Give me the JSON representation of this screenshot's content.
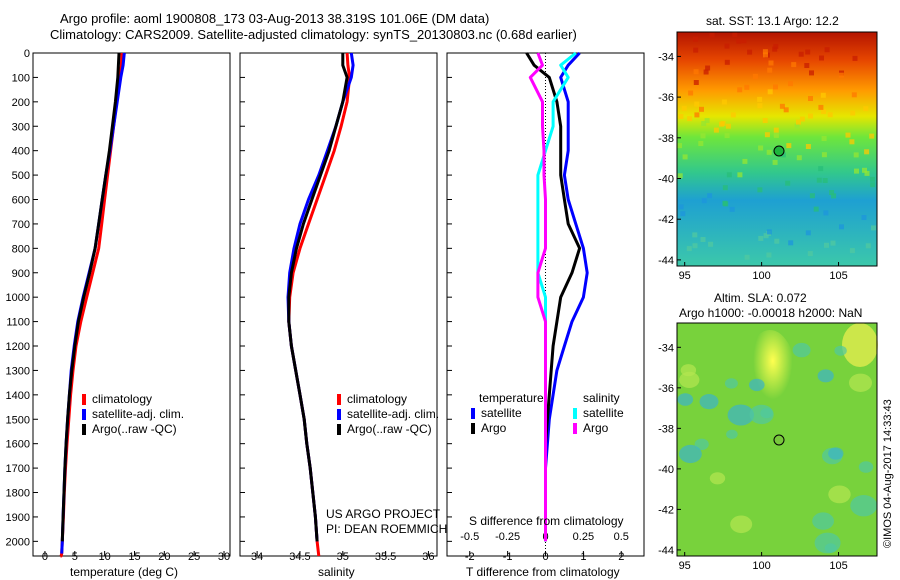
{
  "header": {
    "line1": "Argo profile: aoml 1900808_173 03-Aug-2013 38.319S 101.06E (DM data)",
    "line2": "Climatology: CARS2009. Satellite-adjusted climatology: synTS_20130803.nc (0.68d earlier)"
  },
  "colors": {
    "climatology": "#ff0000",
    "satellite": "#0000ff",
    "argo": "#000000",
    "argo_salinity": "#ff00ff",
    "satellite_salinity": "#00ffff"
  },
  "depth_ticks": [
    "0",
    "100",
    "200",
    "300",
    "400",
    "500",
    "600",
    "700",
    "800",
    "900",
    "1000",
    "1100",
    "1200",
    "1300",
    "1400",
    "1500",
    "1600",
    "1700",
    "1800",
    "1900",
    "2000"
  ],
  "legend_profile": [
    {
      "label": "climatology",
      "color": "#ff0000"
    },
    {
      "label": "satellite-adj. clim.",
      "color": "#0000ff"
    },
    {
      "label": "Argo(..raw -QC)",
      "color": "#000000"
    }
  ],
  "legend_diff": {
    "temp_header": "temperature",
    "sal_header": "salinity",
    "temp": [
      {
        "label": "satellite",
        "color": "#0000ff"
      },
      {
        "label": "Argo",
        "color": "#000000"
      }
    ],
    "sal": [
      {
        "label": "satellite",
        "color": "#00ffff"
      },
      {
        "label": "Argo",
        "color": "#ff00ff"
      }
    ]
  },
  "credit": {
    "line1": "US ARGO PROJECT",
    "line2": "PI: DEAN ROEMMICH"
  },
  "map_sst": {
    "title": "sat. SST: 13.1  Argo: 12.2",
    "lat_ticks": [
      "-34",
      "-36",
      "-38",
      "-40",
      "-42",
      "-44"
    ],
    "lon_ticks": [
      "95",
      "100",
      "105"
    ]
  },
  "map_sla": {
    "title1": "Altim. SLA: 0.072",
    "title2": "Argo h1000: -0.00018 h2000: NaN",
    "lat_ticks": [
      "-34",
      "-36",
      "-38",
      "-40",
      "-42",
      "-44"
    ],
    "lon_ticks": [
      "95",
      "100",
      "105"
    ]
  },
  "watermark": "©IMOS 04-Aug-2017 14:33:43",
  "chart_data": [
    {
      "type": "line",
      "xlabel": "temperature (deg C)",
      "ylabel": "",
      "xlim": [
        -2,
        31
      ],
      "ylim": [
        2060,
        0
      ],
      "xticks": [
        0,
        5,
        10,
        15,
        20,
        25,
        30
      ],
      "series": [
        {
          "name": "climatology",
          "color": "#ff0000",
          "x": [
            12.9,
            12.8,
            12.5,
            12.0,
            11.5,
            11.0,
            10.5,
            10.0,
            9.5,
            9.0,
            8.0,
            7.0,
            6.0,
            5.2,
            4.7,
            4.3,
            4.0,
            3.7,
            3.45,
            3.25,
            3.1,
            2.9,
            2.8,
            2.7,
            2.6
          ],
          "y": [
            0,
            50,
            100,
            200,
            300,
            400,
            500,
            600,
            700,
            800,
            900,
            1000,
            1100,
            1200,
            1300,
            1400,
            1500,
            1600,
            1700,
            1800,
            1900,
            2000,
            2050,
            2060,
            2060
          ]
        },
        {
          "name": "satellite-adj. clim.",
          "color": "#0000ff",
          "x": [
            13.3,
            13.1,
            12.7,
            12.1,
            11.5,
            10.9,
            10.2,
            9.6,
            9.0,
            8.4,
            7.4,
            6.4,
            5.5,
            4.9,
            4.4,
            4.1,
            3.8,
            3.55,
            3.35,
            3.2,
            3.05,
            2.9,
            2.8
          ],
          "y": [
            0,
            50,
            100,
            200,
            300,
            400,
            500,
            600,
            700,
            800,
            900,
            1000,
            1100,
            1200,
            1300,
            1400,
            1500,
            1600,
            1700,
            1800,
            1900,
            2000,
            2050
          ]
        },
        {
          "name": "Argo(..raw -QC)",
          "color": "#000000",
          "x": [
            12.4,
            12.3,
            12.2,
            11.8,
            11.3,
            10.8,
            10.2,
            9.6,
            9.0,
            8.4,
            7.5,
            6.5,
            5.6,
            5.0,
            4.5,
            4.1,
            3.8,
            3.55,
            3.35,
            3.2,
            3.05,
            2.9
          ],
          "y": [
            0,
            50,
            100,
            200,
            300,
            400,
            500,
            600,
            700,
            800,
            900,
            1000,
            1100,
            1200,
            1300,
            1400,
            1500,
            1600,
            1700,
            1800,
            1900,
            2000
          ]
        }
      ]
    },
    {
      "type": "line",
      "xlabel": "salinity",
      "ylabel": "",
      "xlim": [
        33.8,
        36.1
      ],
      "ylim": [
        2060,
        0
      ],
      "xticks": [
        34,
        34.5,
        35,
        35.5,
        36
      ],
      "series": [
        {
          "name": "climatology",
          "color": "#ff0000",
          "x": [
            35.05,
            35.06,
            35.08,
            35.05,
            34.98,
            34.9,
            34.8,
            34.7,
            34.6,
            34.5,
            34.42,
            34.38,
            34.37,
            34.4,
            34.45,
            34.5,
            34.55,
            34.58,
            34.62,
            34.65,
            34.68,
            34.7,
            34.72
          ],
          "y": [
            0,
            50,
            100,
            200,
            300,
            400,
            500,
            600,
            700,
            800,
            900,
            1000,
            1100,
            1200,
            1300,
            1400,
            1500,
            1600,
            1700,
            1800,
            1900,
            2000,
            2060
          ]
        },
        {
          "name": "satellite-adj. clim.",
          "color": "#0000ff",
          "x": [
            35.1,
            35.12,
            35.1,
            35.0,
            34.92,
            34.82,
            34.72,
            34.6,
            34.5,
            34.43,
            34.38,
            34.36,
            34.37,
            34.4,
            34.45,
            34.5,
            34.55,
            34.58,
            34.62,
            34.65,
            34.68,
            34.7
          ],
          "y": [
            0,
            50,
            100,
            200,
            300,
            400,
            500,
            600,
            700,
            800,
            900,
            1000,
            1100,
            1200,
            1300,
            1400,
            1500,
            1600,
            1700,
            1800,
            1900,
            2000
          ]
        },
        {
          "name": "Argo(..raw -QC)",
          "color": "#000000",
          "x": [
            35.0,
            35.0,
            35.05,
            35.0,
            34.92,
            34.84,
            34.74,
            34.64,
            34.54,
            34.46,
            34.4,
            34.37,
            34.37,
            34.4,
            34.45,
            34.5,
            34.55,
            34.58,
            34.62,
            34.65,
            34.68,
            34.7
          ],
          "y": [
            0,
            50,
            100,
            200,
            300,
            400,
            500,
            600,
            700,
            800,
            900,
            1000,
            1100,
            1200,
            1300,
            1400,
            1500,
            1600,
            1700,
            1800,
            1900,
            2000
          ]
        }
      ]
    },
    {
      "type": "line",
      "xlabel": "T difference from climatology",
      "secondary_xlabel": "S difference from climatology",
      "xlim": [
        -2.6,
        2.6
      ],
      "ylim": [
        2060,
        0
      ],
      "xticks": [
        -2,
        -1,
        0,
        1,
        2
      ],
      "xticklabels": [
        "-2",
        "-1",
        "0",
        "1",
        "2"
      ],
      "s_xticks": [
        -0.5,
        -0.25,
        0,
        0.25,
        0.5
      ],
      "s_xticklabels": [
        "-0.5",
        "-0.25",
        "0",
        "0.25",
        "0.5"
      ],
      "series": [
        {
          "name": "temperature satellite",
          "color": "#0000ff",
          "x": [
            0.9,
            0.6,
            0.4,
            0.6,
            0.6,
            0.6,
            0.5,
            0.6,
            0.8,
            1.0,
            1.1,
            1.0,
            0.7,
            0.5,
            0.3,
            0.2,
            0.1,
            0.05,
            0.0,
            0.0,
            0.0,
            0.0
          ],
          "y": [
            0,
            50,
            100,
            200,
            300,
            400,
            500,
            600,
            700,
            800,
            900,
            1000,
            1100,
            1200,
            1300,
            1400,
            1500,
            1600,
            1700,
            1800,
            1900,
            2000
          ]
        },
        {
          "name": "temperature Argo",
          "color": "#000000",
          "x": [
            -0.5,
            -0.3,
            0.1,
            0.3,
            0.4,
            0.4,
            0.4,
            0.5,
            0.6,
            0.9,
            0.7,
            0.4,
            0.3,
            0.2,
            0.15,
            0.1,
            0.05,
            0.0,
            0.0,
            0.0,
            0.0,
            0.0
          ],
          "y": [
            0,
            50,
            100,
            200,
            300,
            400,
            500,
            600,
            700,
            800,
            900,
            1000,
            1100,
            1200,
            1300,
            1400,
            1500,
            1600,
            1700,
            1800,
            1900,
            2000
          ]
        },
        {
          "name": "salinity satellite",
          "color": "#00ffff",
          "x": [
            0.2,
            0.1,
            0.15,
            0.05,
            0.05,
            0.0,
            -0.05,
            -0.05,
            -0.05,
            -0.05,
            -0.05,
            0.0,
            0.0,
            0.0,
            0.0,
            0.0,
            0.0,
            0.0,
            0.0,
            0.0,
            0.0,
            0.0
          ],
          "y": [
            0,
            50,
            100,
            200,
            300,
            400,
            500,
            600,
            700,
            800,
            900,
            1000,
            1100,
            1200,
            1300,
            1400,
            1500,
            1600,
            1700,
            1800,
            1900,
            2000
          ]
        },
        {
          "name": "salinity Argo",
          "color": "#ff00ff",
          "x": [
            -0.05,
            -0.02,
            -0.1,
            -0.02,
            -0.02,
            -0.01,
            -0.01,
            0.0,
            0.0,
            0.0,
            -0.05,
            -0.05,
            0.0,
            0.0,
            0.0,
            0.0,
            0.0,
            0.0,
            0.0,
            0.0,
            0.0,
            0.0
          ],
          "y": [
            0,
            50,
            100,
            200,
            300,
            400,
            500,
            600,
            700,
            800,
            900,
            1000,
            1100,
            1200,
            1300,
            1400,
            1500,
            1600,
            1700,
            1800,
            1900,
            2000
          ]
        }
      ]
    },
    {
      "type": "heatmap",
      "title": "sat. SST: 13.1  Argo: 12.2",
      "xlim": [
        94.5,
        107.5
      ],
      "ylim": [
        -44.3,
        -32.8
      ],
      "marker": {
        "lon": 101.06,
        "lat": -38.319
      }
    },
    {
      "type": "heatmap",
      "title": "Altim. SLA: 0.072 / Argo h1000: -0.00018 h2000: NaN",
      "xlim": [
        94.5,
        107.5
      ],
      "ylim": [
        -44.3,
        -32.8
      ],
      "marker": {
        "lon": 101.06,
        "lat": -38.319
      }
    }
  ]
}
